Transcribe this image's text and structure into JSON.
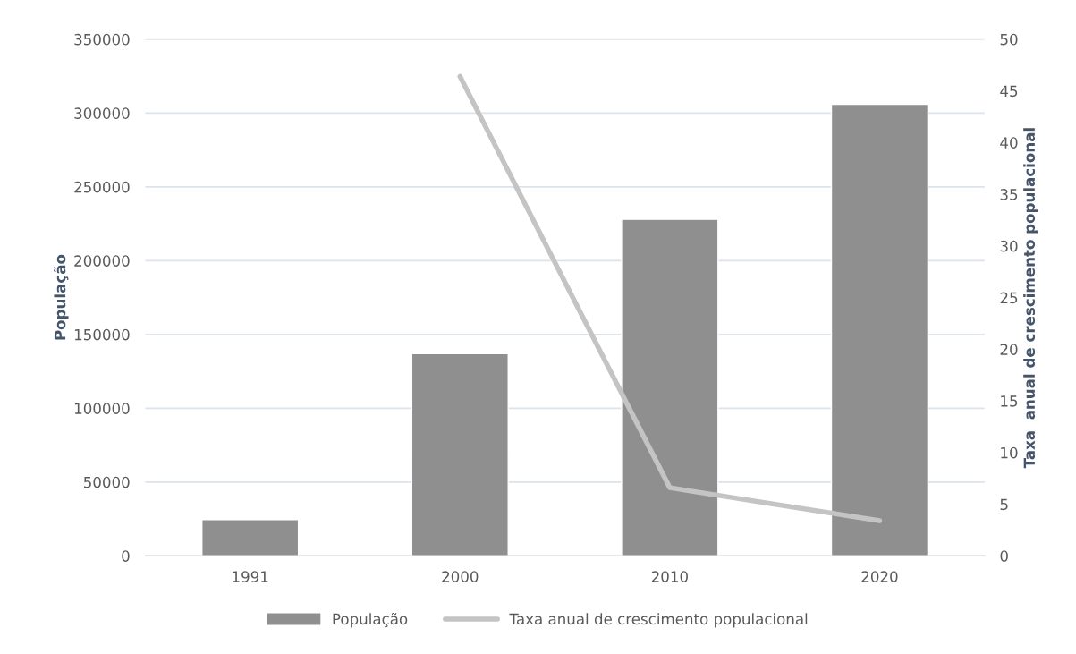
{
  "chart_data": {
    "type": "bar",
    "categories": [
      "1991",
      "2000",
      "2010",
      "2020"
    ],
    "series": [
      {
        "name": "População",
        "color": "#8f8f8f",
        "values": [
          24500,
          137000,
          228000,
          306000
        ]
      },
      {
        "name": "Taxa anual de crescimento populacional",
        "type": "line",
        "axis": "y2",
        "color": "#c4c4c4",
        "values": [
          null,
          46.4,
          6.6,
          3.4
        ]
      }
    ],
    "ylabel": "População",
    "y2label": "Taxa  anual de crescimento populacional",
    "ylim": [
      0,
      350000
    ],
    "yticks": [
      0,
      50000,
      100000,
      150000,
      200000,
      250000,
      300000,
      350000
    ],
    "y2lim": [
      0,
      50
    ],
    "y2ticks": [
      0,
      5,
      10,
      15,
      20,
      25,
      30,
      35,
      40,
      45,
      50
    ],
    "grid": "y",
    "legend": "bottom",
    "marker": "none",
    "line_style": "solid"
  }
}
